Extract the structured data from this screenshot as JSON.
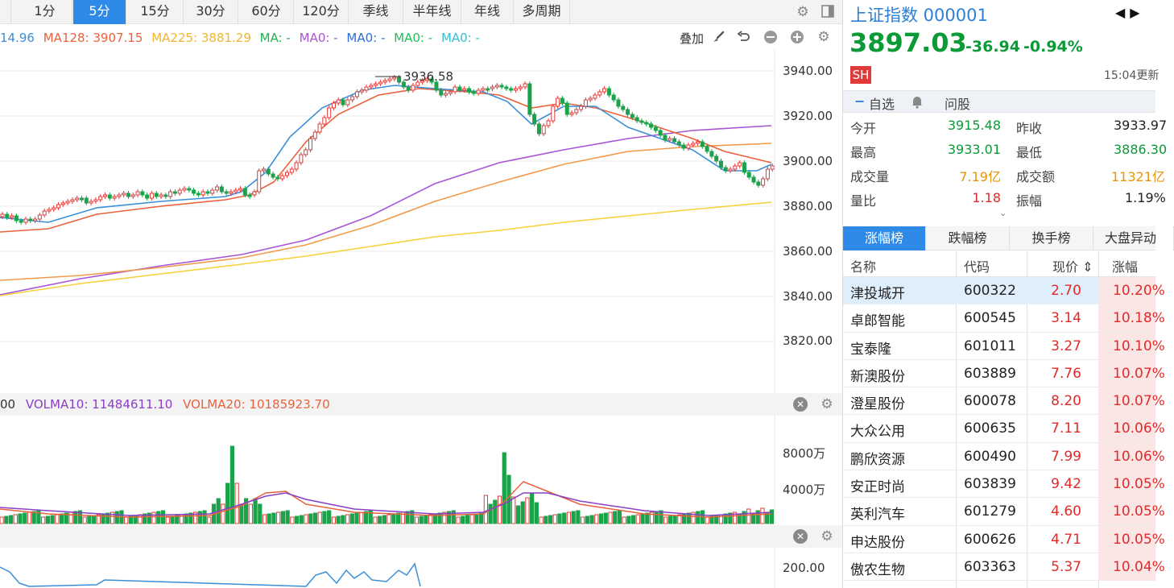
{
  "period_tabs": [
    {
      "label": "",
      "active": false
    },
    {
      "label": "1分",
      "active": false
    },
    {
      "label": "5分",
      "active": true
    },
    {
      "label": "15分",
      "active": false
    },
    {
      "label": "30分",
      "active": false
    },
    {
      "label": "60分",
      "active": false
    },
    {
      "label": "120分",
      "active": false
    },
    {
      "label": "季线",
      "active": false
    },
    {
      "label": "半年线",
      "active": false
    },
    {
      "label": "年线",
      "active": false
    },
    {
      "label": "多周期",
      "active": false
    }
  ],
  "toolbar_icons": [
    "gear-icon",
    "layout-icon"
  ],
  "ma_legend": [
    {
      "text": "14.96",
      "color": "#3a8fd8"
    },
    {
      "text": "MA128: 3907.15",
      "color": "#e9613c"
    },
    {
      "text": "MA225: 3881.29",
      "color": "#f2b430"
    },
    {
      "text": "MA: -",
      "color": "#23b14d"
    },
    {
      "text": "MA0: -",
      "color": "#a855d4"
    },
    {
      "text": "MA0: -",
      "color": "#2e6fe0"
    },
    {
      "text": "MA0: -",
      "color": "#23c05a"
    },
    {
      "text": "MA0: -",
      "color": "#35c0d6"
    }
  ],
  "overlay": {
    "label": "叠加",
    "icons": [
      "brush-icon",
      "undo-icon",
      "minus-circle-icon",
      "plus-circle-icon",
      "gear-icon"
    ]
  },
  "price_chart": {
    "y_axis_ticks": [
      "3940.00",
      "3920.00",
      "3900.00",
      "3880.00",
      "3860.00",
      "3840.00",
      "3820.00"
    ],
    "high_label": "3936.58",
    "colors": {
      "up": "#e03a3a",
      "down": "#1aa34a",
      "ma_short": "#3a8fd8",
      "ma_mid": "#e9613c",
      "ma_purple": "#a855d4",
      "ma_orange": "#f29a4a",
      "ma_yellow": "#f5d23a"
    }
  },
  "volume": {
    "legend": [
      {
        "text": "00",
        "color": "#333"
      },
      {
        "text": "VOLMA10:  11484611.10",
        "color": "#8a3fc8"
      },
      {
        "text": "VOLMA20:  10185923.70",
        "color": "#e9613c"
      }
    ],
    "y_axis_ticks": [
      "8000万",
      "4000万"
    ]
  },
  "indicator": {
    "y_axis_ticks": [
      "200.00"
    ]
  },
  "index": {
    "name": "上证指数 000001",
    "price": "3897.03",
    "change": "-36.94",
    "change_pct": "-0.94%",
    "exchange_badge": "SH",
    "update_time": "15:04更新",
    "arrows": "◀▶"
  },
  "actions": {
    "watch": "自选",
    "ask": "问股",
    "watch_prefix": "−"
  },
  "quote": {
    "open_label": "今开",
    "open": "3915.48",
    "prev_close_label": "昨收",
    "prev_close": "3933.97",
    "high_label": "最高",
    "high": "3933.01",
    "low_label": "最低",
    "low": "3886.30",
    "volume_label": "成交量",
    "volume": "7.19亿",
    "turnover_label": "成交额",
    "turnover": "11321亿",
    "vol_ratio_label": "量比",
    "vol_ratio": "1.18",
    "amplitude_label": "振幅",
    "amplitude": "1.19%"
  },
  "rank_tabs": [
    {
      "label": "涨幅榜",
      "active": true
    },
    {
      "label": "跌幅榜",
      "active": false
    },
    {
      "label": "换手榜",
      "active": false
    },
    {
      "label": "大盘异动",
      "active": false
    }
  ],
  "rank_headers": {
    "name": "名称",
    "code": "代码",
    "price": "现价 ⇕",
    "change": "涨幅"
  },
  "rank_rows": [
    {
      "name": "津投城开",
      "code": "600322",
      "price": "2.70",
      "change": "10.20%"
    },
    {
      "name": "卓郎智能",
      "code": "600545",
      "price": "3.14",
      "change": "10.18%"
    },
    {
      "name": "宝泰隆",
      "code": "601011",
      "price": "3.27",
      "change": "10.10%"
    },
    {
      "name": "新澳股份",
      "code": "603889",
      "price": "7.76",
      "change": "10.07%"
    },
    {
      "name": "澄星股份",
      "code": "600078",
      "price": "8.20",
      "change": "10.07%"
    },
    {
      "name": "大众公用",
      "code": "600635",
      "price": "7.11",
      "change": "10.06%"
    },
    {
      "name": "鹏欣资源",
      "code": "600490",
      "price": "7.99",
      "change": "10.06%"
    },
    {
      "name": "安正时尚",
      "code": "603839",
      "price": "9.42",
      "change": "10.05%"
    },
    {
      "name": "英利汽车",
      "code": "601279",
      "price": "4.60",
      "change": "10.05%"
    },
    {
      "name": "申达股份",
      "code": "600626",
      "price": "4.71",
      "change": "10.05%"
    },
    {
      "name": "傲农生物",
      "code": "603363",
      "price": "5.37",
      "change": "10.04%"
    }
  ]
}
